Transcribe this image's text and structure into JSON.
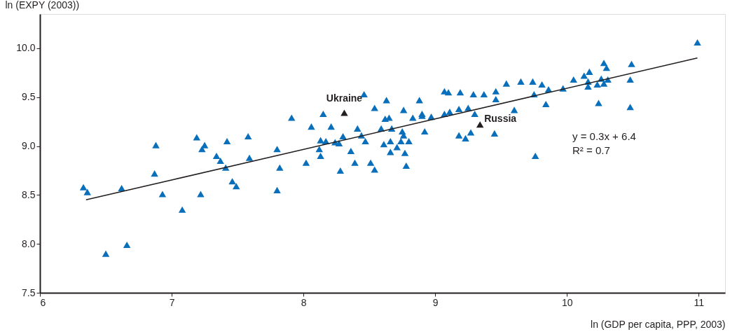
{
  "chart_data": {
    "type": "scatter",
    "xlabel": "ln (GDP per capita, PPP, 2003)",
    "ylabel": "ln (EXPY (2003))",
    "xlim": [
      6,
      11.2
    ],
    "xticks": [
      6,
      7,
      8,
      9,
      10,
      11
    ],
    "ylim": [
      7.5,
      10.35
    ],
    "yticks": [
      7.5,
      {
        "value": 8,
        "label": "8.0"
      },
      8.5,
      {
        "value": 9,
        "label": "9.0"
      },
      9.5,
      {
        "value": 10,
        "label": "10.0"
      }
    ],
    "grid": false,
    "marker": "triangle",
    "series": [
      {
        "color": "#0a6fba",
        "x": [
          6.33,
          6.36,
          6.5,
          6.66,
          6.62,
          6.87,
          6.88,
          6.93,
          7.08,
          7.19,
          7.25,
          7.23,
          7.22,
          7.34,
          7.37,
          7.41,
          7.42,
          7.46,
          7.49,
          7.58,
          7.59,
          7.8,
          7.8,
          7.82,
          7.91,
          8.02,
          8.06,
          8.13,
          8.15,
          8.17,
          8.12,
          8.13,
          8.21,
          8.24,
          8.27,
          8.3,
          8.28,
          8.36,
          8.39,
          8.41,
          8.44,
          8.47,
          8.46,
          8.51,
          8.54,
          8.54,
          8.59,
          8.61,
          8.62,
          8.65,
          8.63,
          8.66,
          8.67,
          8.71,
          8.66,
          8.75,
          8.76,
          8.74,
          8.8,
          8.77,
          8.78,
          8.76,
          8.83,
          8.88,
          8.9,
          8.9,
          8.92,
          8.97,
          9.07,
          9.1,
          9.07,
          9.11,
          9.19,
          9.18,
          9.18,
          9.23,
          9.27,
          9.25,
          9.29,
          9.3,
          9.37,
          9.46,
          9.46,
          9.45,
          9.54,
          9.6,
          9.65,
          9.74,
          9.81,
          9.86,
          9.75,
          9.84,
          9.76,
          9.97,
          10.05,
          10.13,
          10.17,
          10.16,
          10.16,
          10.23,
          10.26,
          10.28,
          10.3,
          10.31,
          10.28,
          10.24,
          10.49,
          10.48,
          10.48,
          10.99
        ],
        "values": [
          8.58,
          8.53,
          7.9,
          7.99,
          8.57,
          8.72,
          9.01,
          8.51,
          8.35,
          9.09,
          9.01,
          8.97,
          8.51,
          8.9,
          8.85,
          8.78,
          9.05,
          8.64,
          8.59,
          9.1,
          8.88,
          8.97,
          8.55,
          8.78,
          9.29,
          8.83,
          9.2,
          9.06,
          9.33,
          9.05,
          8.97,
          8.9,
          9.2,
          9.04,
          9.03,
          9.1,
          8.75,
          8.95,
          8.83,
          9.18,
          9.11,
          9.05,
          9.53,
          8.83,
          8.76,
          9.39,
          9.18,
          9.02,
          9.28,
          9.29,
          9.47,
          9.05,
          9.18,
          8.99,
          8.94,
          9.15,
          9.11,
          9.05,
          9.05,
          8.93,
          8.8,
          9.37,
          9.29,
          9.47,
          9.33,
          9.31,
          9.15,
          9.3,
          9.56,
          9.55,
          9.33,
          9.35,
          9.55,
          9.38,
          9.11,
          9.08,
          9.14,
          9.39,
          9.53,
          9.33,
          9.53,
          9.56,
          9.48,
          9.13,
          9.64,
          9.37,
          9.66,
          9.66,
          9.63,
          9.58,
          9.53,
          9.43,
          8.9,
          9.59,
          9.68,
          9.72,
          9.76,
          9.66,
          9.61,
          9.63,
          9.69,
          9.85,
          9.8,
          9.68,
          9.64,
          9.44,
          9.84,
          9.68,
          9.4,
          10.06
        ]
      },
      {
        "color": "#231f20",
        "x": [
          8.31,
          9.34
        ],
        "values": [
          9.34,
          9.22
        ]
      },
      {
        "type": "line",
        "marker": "none",
        "color": "#231f20",
        "x": [
          6.35,
          10.99
        ],
        "values": [
          8.45,
          9.9
        ]
      }
    ],
    "annotations": [
      {
        "text": "Ukraine",
        "x": 8.31,
        "y": 9.34
      },
      {
        "text": "Russia",
        "x": 9.34,
        "y": 9.22
      },
      "y = 0.3x + 6.4",
      "R² = 0.7"
    ]
  }
}
